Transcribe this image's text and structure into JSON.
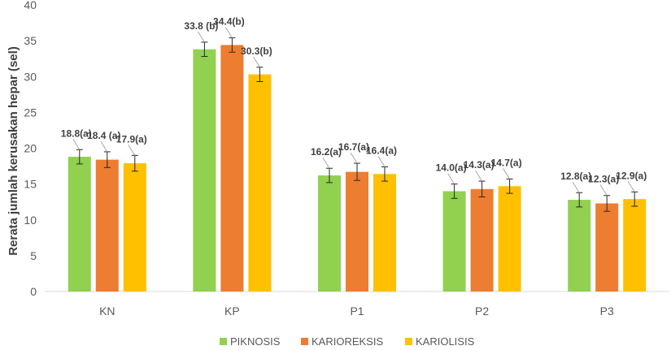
{
  "chart_data": {
    "type": "bar",
    "title": "",
    "xlabel": "",
    "ylabel": "Rerata  jumlah kerusakan hepar (sel)",
    "ylim": [
      0,
      40
    ],
    "yticks": [
      0,
      5,
      10,
      15,
      20,
      25,
      30,
      35,
      40
    ],
    "grid": false,
    "legend_position": "bottom",
    "categories": [
      "KN",
      "KP",
      "P1",
      "P2",
      "P3"
    ],
    "series": [
      {
        "name": "PIKNOSIS",
        "color": "#92D050",
        "values": [
          18.8,
          33.8,
          16.2,
          14.0,
          12.8
        ],
        "errors": [
          1.0,
          1.0,
          1.0,
          1.0,
          1.0
        ],
        "labels": [
          "18.8(a)",
          "33.8 (b)",
          "16.2(a)",
          "14.0(a)",
          "12.8(a)"
        ]
      },
      {
        "name": "KARIOREKSIS",
        "color": "#ED7D31",
        "values": [
          18.4,
          34.4,
          16.7,
          14.3,
          12.3
        ],
        "errors": [
          1.1,
          1.0,
          1.2,
          1.1,
          1.1
        ],
        "labels": [
          "18.4 (a)",
          "34.4(b)",
          "16.7(a)",
          "14.3(a)",
          "12.3(a)"
        ]
      },
      {
        "name": "KARIOLISIS",
        "color": "#FFC000",
        "values": [
          17.9,
          30.3,
          16.4,
          14.7,
          12.9
        ],
        "errors": [
          1.1,
          1.0,
          1.0,
          1.0,
          1.0
        ],
        "labels": [
          "17.9(a)",
          "30.3(b)",
          "16.4(a)",
          "14.7(a)",
          "12.9(a)"
        ]
      }
    ]
  }
}
